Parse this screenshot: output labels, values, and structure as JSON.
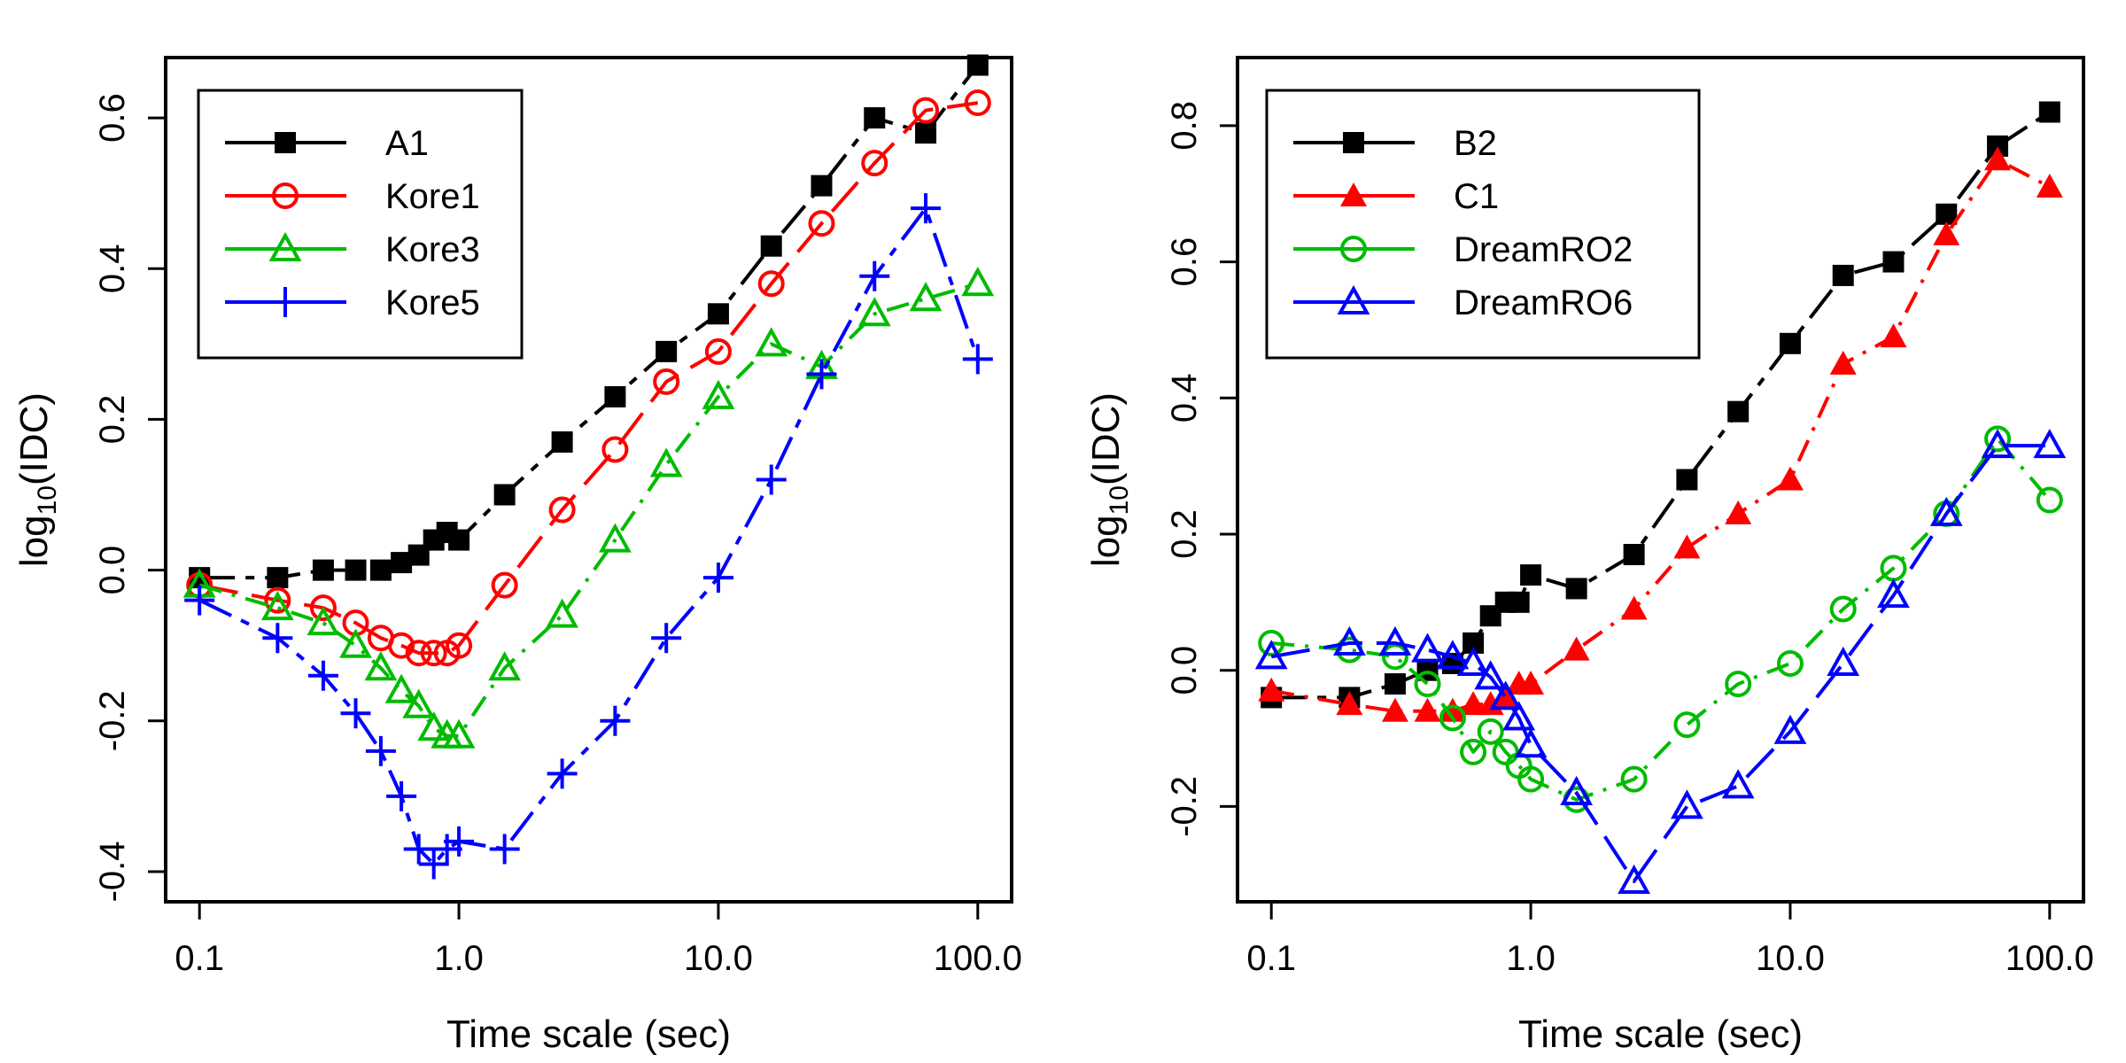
{
  "chart_data": [
    {
      "type": "line",
      "x_scale": "log",
      "xlabel": "Time scale (sec)",
      "ylabel_base": "log",
      "ylabel_sub": "10",
      "ylabel_arg": "(IDC)",
      "xlim": [
        0.1,
        100
      ],
      "ylim": [
        -0.44,
        0.68
      ],
      "x_ticks": [
        0.1,
        1,
        10,
        100
      ],
      "x_tick_labels": [
        "0.1",
        "1.0",
        "10.0",
        "100.0"
      ],
      "y_ticks": [
        -0.4,
        -0.2,
        0,
        0.2,
        0.4,
        0.6
      ],
      "y_tick_labels": [
        "-0.4",
        "-0.2",
        "0.0",
        "0.2",
        "0.4",
        "0.6"
      ],
      "legend_position": "top-left",
      "series": [
        {
          "name": "A1",
          "color": "#000000",
          "marker": "filled-square",
          "dash": "long-short",
          "x": [
            0.1,
            0.2,
            0.3,
            0.4,
            0.5,
            0.6,
            0.7,
            0.8,
            0.9,
            1.0,
            1.5,
            2.5,
            4,
            6.3,
            10,
            16,
            25,
            40,
            63,
            100
          ],
          "y": [
            -0.01,
            -0.01,
            0.0,
            0.0,
            0.0,
            0.01,
            0.02,
            0.04,
            0.05,
            0.04,
            0.1,
            0.17,
            0.23,
            0.29,
            0.34,
            0.43,
            0.51,
            0.6,
            0.58,
            0.67
          ]
        },
        {
          "name": "Kore1",
          "color": "#ff0000",
          "marker": "open-circle",
          "dash": "long",
          "x": [
            0.1,
            0.2,
            0.3,
            0.4,
            0.5,
            0.6,
            0.7,
            0.8,
            0.9,
            1.0,
            1.5,
            2.5,
            4,
            6.3,
            10,
            16,
            25,
            40,
            63,
            100
          ],
          "y": [
            -0.02,
            -0.04,
            -0.05,
            -0.07,
            -0.09,
            -0.1,
            -0.11,
            -0.11,
            -0.11,
            -0.1,
            -0.02,
            0.08,
            0.16,
            0.25,
            0.29,
            0.38,
            0.46,
            0.54,
            0.61,
            0.62
          ]
        },
        {
          "name": "Kore3",
          "color": "#00bb00",
          "marker": "open-triangle",
          "dash": "dash-dot",
          "x": [
            0.1,
            0.2,
            0.3,
            0.4,
            0.5,
            0.6,
            0.7,
            0.8,
            0.9,
            1.0,
            1.5,
            2.5,
            4,
            6.3,
            10,
            16,
            25,
            40,
            63,
            100
          ],
          "y": [
            -0.02,
            -0.05,
            -0.07,
            -0.1,
            -0.13,
            -0.16,
            -0.18,
            -0.21,
            -0.22,
            -0.22,
            -0.13,
            -0.06,
            0.04,
            0.14,
            0.23,
            0.3,
            0.27,
            0.34,
            0.36,
            0.38
          ]
        },
        {
          "name": "Kore5",
          "color": "#0000ff",
          "marker": "plus",
          "dash": "long-short",
          "x": [
            0.1,
            0.2,
            0.3,
            0.4,
            0.5,
            0.6,
            0.7,
            0.8,
            0.9,
            1.0,
            1.5,
            2.5,
            4,
            6.3,
            10,
            16,
            25,
            40,
            63,
            100
          ],
          "y": [
            -0.04,
            -0.09,
            -0.14,
            -0.19,
            -0.24,
            -0.3,
            -0.37,
            -0.39,
            -0.37,
            -0.36,
            -0.37,
            -0.27,
            -0.2,
            -0.09,
            -0.01,
            0.12,
            0.26,
            0.39,
            0.48,
            0.28
          ]
        }
      ]
    },
    {
      "type": "line",
      "x_scale": "log",
      "xlabel": "Time scale (sec)",
      "ylabel_base": "log",
      "ylabel_sub": "10",
      "ylabel_arg": "(IDC)",
      "xlim": [
        0.1,
        100
      ],
      "ylim": [
        -0.34,
        0.9
      ],
      "x_ticks": [
        0.1,
        1,
        10,
        100
      ],
      "x_tick_labels": [
        "0.1",
        "1.0",
        "10.0",
        "100.0"
      ],
      "y_ticks": [
        -0.2,
        0,
        0.2,
        0.4,
        0.6,
        0.8
      ],
      "y_tick_labels": [
        "-0.2",
        "0.0",
        "0.2",
        "0.4",
        "0.6",
        "0.8"
      ],
      "legend_position": "top-left",
      "series": [
        {
          "name": "B2",
          "color": "#000000",
          "marker": "filled-square",
          "dash": "long-short",
          "x": [
            0.1,
            0.2,
            0.3,
            0.4,
            0.5,
            0.6,
            0.7,
            0.8,
            0.9,
            1.0,
            1.5,
            2.5,
            4,
            6.3,
            10,
            16,
            25,
            40,
            63,
            100
          ],
          "y": [
            -0.04,
            -0.04,
            -0.02,
            0.0,
            0.01,
            0.04,
            0.08,
            0.1,
            0.1,
            0.14,
            0.12,
            0.17,
            0.28,
            0.38,
            0.48,
            0.58,
            0.6,
            0.67,
            0.77,
            0.82
          ]
        },
        {
          "name": "C1",
          "color": "#ff0000",
          "marker": "filled-triangle",
          "dash": "dash-dot",
          "x": [
            0.1,
            0.2,
            0.3,
            0.4,
            0.5,
            0.6,
            0.7,
            0.8,
            0.9,
            1.0,
            1.5,
            2.5,
            4,
            6.3,
            10,
            16,
            25,
            40,
            63,
            100
          ],
          "y": [
            -0.03,
            -0.05,
            -0.06,
            -0.06,
            -0.06,
            -0.05,
            -0.05,
            -0.04,
            -0.02,
            -0.02,
            0.03,
            0.09,
            0.18,
            0.23,
            0.28,
            0.45,
            0.49,
            0.64,
            0.75,
            0.71
          ]
        },
        {
          "name": "DreamRO2",
          "color": "#00bb00",
          "marker": "open-circle",
          "dash": "dash-dot",
          "x": [
            0.1,
            0.2,
            0.3,
            0.4,
            0.5,
            0.6,
            0.7,
            0.8,
            0.9,
            1.0,
            1.5,
            2.5,
            4,
            6.3,
            10,
            16,
            25,
            40,
            63,
            100
          ],
          "y": [
            0.04,
            0.03,
            0.02,
            -0.02,
            -0.07,
            -0.12,
            -0.09,
            -0.12,
            -0.14,
            -0.16,
            -0.19,
            -0.16,
            -0.08,
            -0.02,
            0.01,
            0.09,
            0.15,
            0.23,
            0.34,
            0.25
          ]
        },
        {
          "name": "DreamRO6",
          "color": "#0000ff",
          "marker": "open-triangle",
          "dash": "long",
          "x": [
            0.1,
            0.2,
            0.3,
            0.4,
            0.5,
            0.6,
            0.7,
            0.8,
            0.9,
            1.0,
            1.5,
            2.5,
            4,
            6.3,
            10,
            16,
            25,
            40,
            63,
            100
          ],
          "y": [
            0.02,
            0.04,
            0.04,
            0.03,
            0.02,
            0.01,
            -0.01,
            -0.04,
            -0.07,
            -0.11,
            -0.18,
            -0.31,
            -0.2,
            -0.17,
            -0.09,
            0.01,
            0.11,
            0.23,
            0.33,
            0.33
          ]
        }
      ]
    }
  ]
}
